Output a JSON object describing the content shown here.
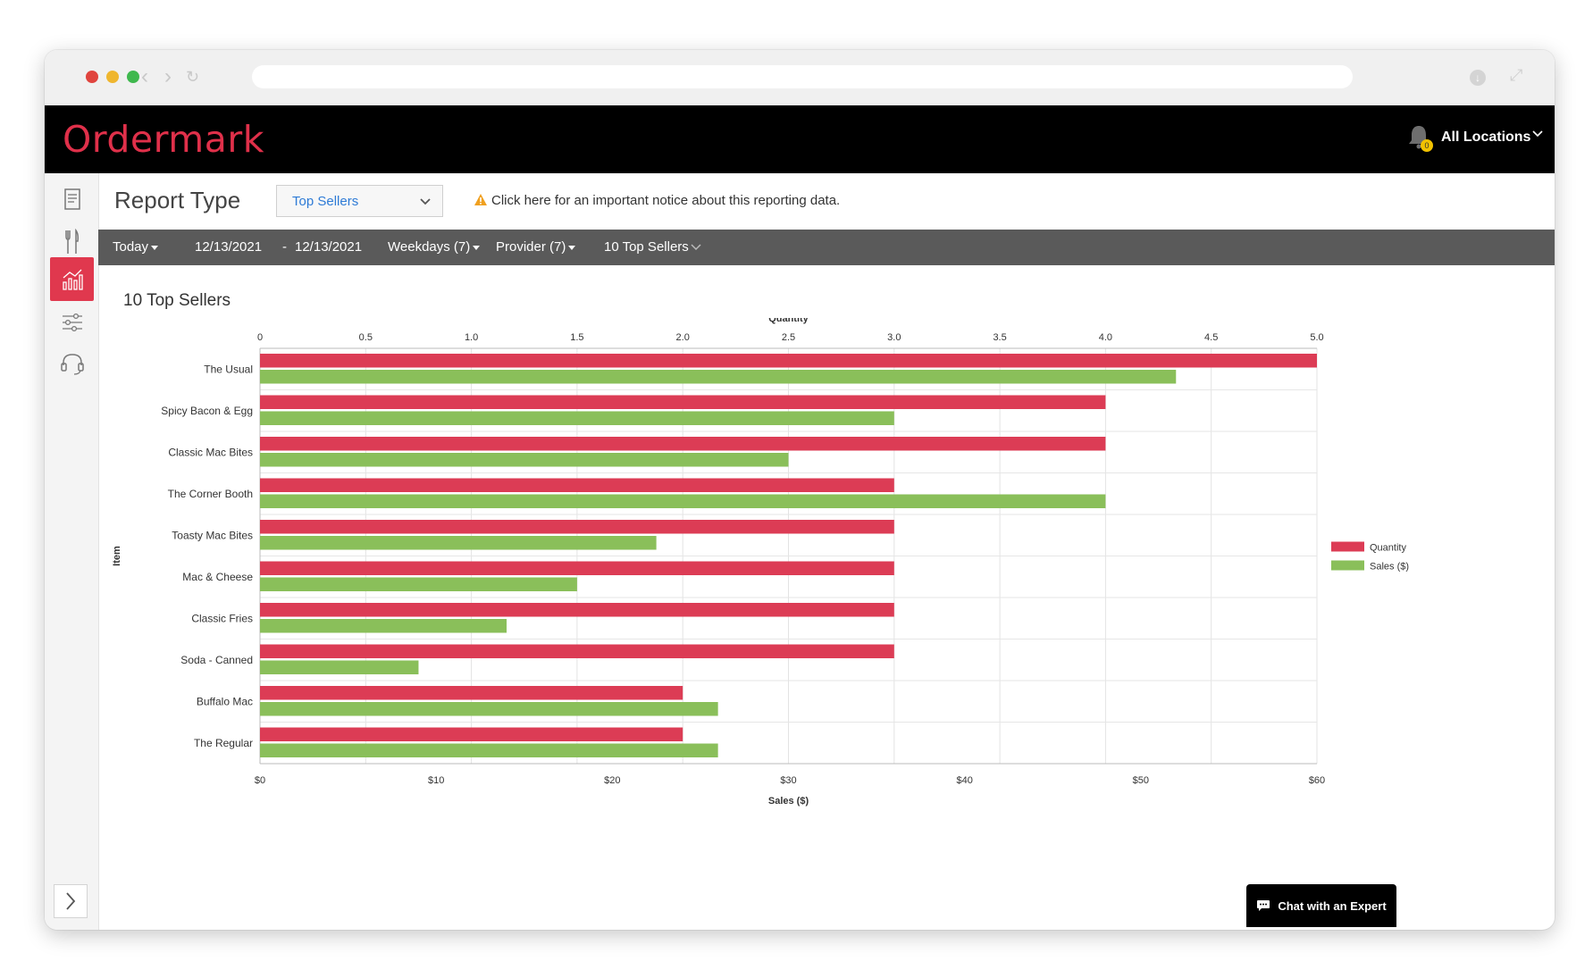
{
  "app": {
    "logo_text": "Ordermark",
    "locations_label": "All Locations",
    "bell_badge": "0"
  },
  "report": {
    "type_label": "Report Type",
    "type_value": "Top Sellers",
    "notice": "Click here for an important notice about this reporting data."
  },
  "filters": {
    "period": "Today",
    "date_from": "12/13/2021",
    "date_sep": "-",
    "date_to": "12/13/2021",
    "weekdays": "Weekdays (7)",
    "provider": "Provider (7)",
    "count": "10 Top Sellers"
  },
  "chat_label": "Chat with an Expert",
  "colors": {
    "quantity": "#dc3c55",
    "sales": "#8abf5a",
    "accent": "#e0304a"
  },
  "chart_data": {
    "type": "bar",
    "orientation": "horizontal",
    "title": "10 Top Sellers",
    "ylabel": "Item",
    "top_axis_label": "Quantity",
    "bottom_axis_label": "Sales ($)",
    "categories": [
      "The Usual",
      "Spicy Bacon & Egg",
      "Classic Mac Bites",
      "The Corner Booth",
      "Toasty Mac Bites",
      "Mac & Cheese",
      "Classic Fries",
      "Soda - Canned",
      "Buffalo Mac",
      "The Regular"
    ],
    "series": [
      {
        "name": "Quantity",
        "axis": "top",
        "values": [
          5,
          4,
          4,
          3,
          3,
          3,
          3,
          3,
          2,
          2
        ]
      },
      {
        "name": "Sales ($)",
        "axis": "bottom",
        "values": [
          52,
          36,
          30,
          48,
          22.5,
          18,
          14,
          9,
          26,
          26
        ]
      }
    ],
    "top_ticks": [
      "0",
      "0.5",
      "1.0",
      "1.5",
      "2.0",
      "2.5",
      "3.0",
      "3.5",
      "4.0",
      "4.5",
      "5.0"
    ],
    "bottom_ticks": [
      "$0",
      "$10",
      "$20",
      "$30",
      "$40",
      "$50",
      "$60"
    ],
    "top_range": [
      0,
      5
    ],
    "bottom_range": [
      0,
      60
    ],
    "grid": true,
    "legend_position": "right"
  }
}
